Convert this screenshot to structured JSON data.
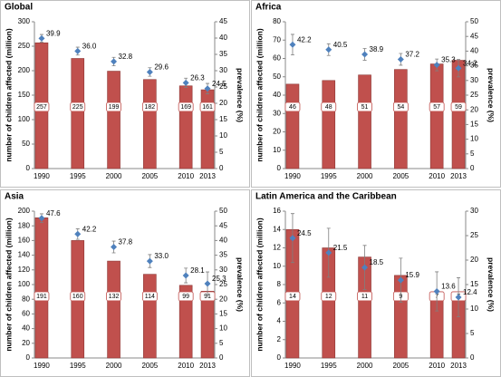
{
  "chart_data": [
    {
      "type": "bar",
      "title": "Global",
      "ylabel": "number of children affected (million)",
      "y2label": "prevalence (%)",
      "x": [
        1990,
        1995,
        2000,
        2005,
        2010,
        2013
      ],
      "xlim": [
        1989,
        2014
      ],
      "ylim": [
        0,
        300
      ],
      "yticks": [
        0,
        50,
        100,
        150,
        200,
        250,
        300
      ],
      "y2lim": [
        0,
        45
      ],
      "y2ticks": [
        0,
        5,
        10,
        15,
        20,
        25,
        30,
        35,
        40,
        45
      ],
      "series": [
        {
          "color": "#c0504d",
          "values": [
            257,
            225,
            199,
            182,
            169,
            161
          ]
        },
        {
          "axis": "y2",
          "color": "#4f81bd",
          "values": [
            39.9,
            36.0,
            32.8,
            29.6,
            26.3,
            24.5
          ],
          "value_labels": [
            "39.9",
            "36.0",
            "32.8",
            "29.6",
            "26.3",
            "24.5"
          ],
          "errors": [
            1.2,
            1.2,
            1.3,
            1.3,
            1.4,
            1.6
          ]
        }
      ]
    },
    {
      "type": "bar",
      "title": "Africa",
      "ylabel": "number of children affected (million)",
      "y2label": "prevalence (%)",
      "x": [
        1990,
        1995,
        2000,
        2005,
        2010,
        2013
      ],
      "xlim": [
        1989,
        2014
      ],
      "ylim": [
        0,
        80
      ],
      "yticks": [
        0,
        10,
        20,
        30,
        40,
        50,
        60,
        70,
        80
      ],
      "y2lim": [
        0,
        50
      ],
      "y2ticks": [
        0,
        5,
        10,
        15,
        20,
        25,
        30,
        35,
        40,
        45,
        50
      ],
      "series": [
        {
          "color": "#c0504d",
          "values": [
            46,
            48,
            51,
            54,
            57,
            59
          ]
        },
        {
          "axis": "y2",
          "color": "#4f81bd",
          "values": [
            42.2,
            40.5,
            38.9,
            37.2,
            35.3,
            34.2
          ],
          "value_labels": [
            "42.2",
            "40.5",
            "38.9",
            "37.2",
            "35.3",
            "34.2"
          ],
          "errors": [
            3.5,
            2,
            2,
            2,
            2,
            3
          ]
        }
      ]
    },
    {
      "type": "bar",
      "title": "Asia",
      "ylabel": "number of children affected (million)",
      "y2label": "prevalence (%)",
      "x": [
        1990,
        1995,
        2000,
        2005,
        2010,
        2013
      ],
      "xlim": [
        1989,
        2014
      ],
      "ylim": [
        0,
        200
      ],
      "yticks": [
        0,
        20,
        40,
        60,
        80,
        100,
        120,
        140,
        160,
        180,
        200
      ],
      "y2lim": [
        0,
        50
      ],
      "y2ticks": [
        0,
        5,
        10,
        15,
        20,
        25,
        30,
        35,
        40,
        45,
        50
      ],
      "series": [
        {
          "color": "#c0504d",
          "values": [
            191,
            160,
            132,
            114,
            99,
            91
          ]
        },
        {
          "axis": "y2",
          "color": "#4f81bd",
          "values": [
            47.6,
            42.2,
            37.8,
            33.0,
            28.1,
            25.3
          ],
          "value_labels": [
            "47.6",
            "42.2",
            "37.8",
            "33.0",
            "28.1",
            "25.3"
          ],
          "errors": [
            1.5,
            1.8,
            2,
            2.2,
            2.5,
            4
          ]
        }
      ]
    },
    {
      "type": "bar",
      "title": "Latin America and the Caribbean",
      "ylabel": "number of children affected (million)",
      "y2label": "prevalence (%)",
      "x": [
        1990,
        1995,
        2000,
        2005,
        2010,
        2013
      ],
      "xlim": [
        1989,
        2014
      ],
      "ylim": [
        0,
        16
      ],
      "yticks": [
        0,
        2,
        4,
        6,
        8,
        10,
        12,
        14,
        16
      ],
      "y2lim": [
        0,
        30
      ],
      "y2ticks": [
        0,
        5,
        10,
        15,
        20,
        25,
        30
      ],
      "series": [
        {
          "color": "#c0504d",
          "values": [
            14,
            12,
            11,
            9,
            7,
            7
          ]
        },
        {
          "axis": "y2",
          "color": "#4f81bd",
          "values": [
            24.5,
            21.5,
            18.5,
            15.9,
            13.6,
            12.4
          ],
          "value_labels": [
            "24.5",
            "21.5",
            "18.5",
            "15.9",
            "13.6",
            "12.4"
          ],
          "errors": [
            5,
            5,
            4.5,
            4.5,
            4,
            4
          ]
        }
      ]
    }
  ]
}
